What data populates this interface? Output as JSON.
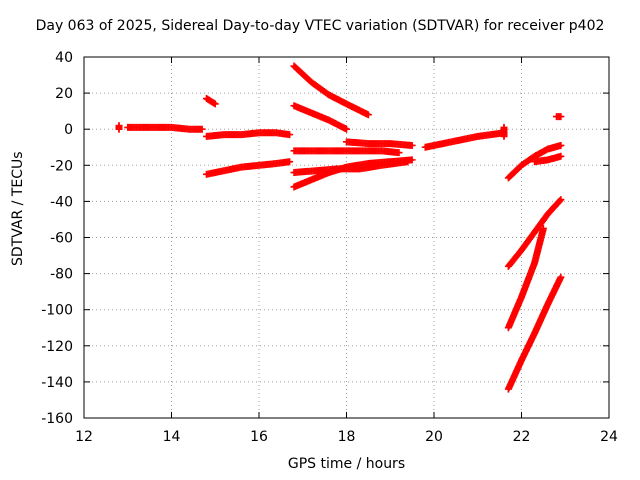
{
  "chart_data": {
    "type": "scatter",
    "title": "Day 063 of 2025, Sidereal Day-to-day VTEC variation (SDTVAR) for receiver p402",
    "xlabel": "GPS time / hours",
    "ylabel": "SDTVAR / TECUs",
    "xlim": [
      12,
      24
    ],
    "ylim": [
      -160,
      40
    ],
    "xticks": [
      12,
      14,
      16,
      18,
      20,
      22,
      24
    ],
    "yticks": [
      40,
      20,
      0,
      -20,
      -40,
      -60,
      -80,
      -100,
      -120,
      -140,
      -160
    ],
    "grid": true,
    "legend": "none",
    "marker": "+",
    "color": "#ff0000",
    "series": [
      {
        "points": [
          [
            12.8,
            2
          ],
          [
            12.8,
            0
          ]
        ]
      },
      {
        "points": [
          [
            13.0,
            1
          ],
          [
            13.5,
            1
          ],
          [
            14.0,
            1
          ],
          [
            14.4,
            0
          ],
          [
            14.7,
            0
          ]
        ]
      },
      {
        "points": [
          [
            14.8,
            17
          ],
          [
            15.0,
            14
          ]
        ]
      },
      {
        "points": [
          [
            14.8,
            -4
          ],
          [
            15.2,
            -3
          ],
          [
            15.6,
            -3
          ],
          [
            16.0,
            -2
          ],
          [
            16.4,
            -2
          ],
          [
            16.7,
            -3
          ]
        ]
      },
      {
        "points": [
          [
            14.8,
            -25
          ],
          [
            15.2,
            -23
          ],
          [
            15.6,
            -21
          ],
          [
            16.0,
            -20
          ],
          [
            16.4,
            -19
          ],
          [
            16.7,
            -18
          ]
        ]
      },
      {
        "points": [
          [
            16.8,
            35
          ],
          [
            17.2,
            26
          ],
          [
            17.6,
            19
          ],
          [
            18.0,
            14
          ],
          [
            18.5,
            8
          ]
        ]
      },
      {
        "points": [
          [
            16.8,
            13
          ],
          [
            17.2,
            9
          ],
          [
            17.6,
            5
          ],
          [
            18.0,
            0
          ]
        ]
      },
      {
        "points": [
          [
            16.8,
            -12
          ],
          [
            17.3,
            -12
          ],
          [
            17.8,
            -12
          ],
          [
            18.3,
            -12
          ],
          [
            18.8,
            -12
          ],
          [
            19.2,
            -13
          ]
        ]
      },
      {
        "points": [
          [
            16.8,
            -24
          ],
          [
            17.3,
            -23
          ],
          [
            17.8,
            -22
          ],
          [
            18.3,
            -22
          ],
          [
            18.8,
            -20
          ],
          [
            19.4,
            -18
          ]
        ]
      },
      {
        "points": [
          [
            16.8,
            -32
          ],
          [
            17.2,
            -28
          ],
          [
            17.6,
            -24
          ],
          [
            18.0,
            -21
          ],
          [
            18.5,
            -19
          ],
          [
            19.0,
            -18
          ],
          [
            19.5,
            -17
          ]
        ]
      },
      {
        "points": [
          [
            18.0,
            -7
          ],
          [
            18.5,
            -8
          ],
          [
            19.0,
            -8
          ],
          [
            19.5,
            -9
          ]
        ]
      },
      {
        "points": [
          [
            19.8,
            -10
          ],
          [
            20.2,
            -8
          ],
          [
            20.6,
            -6
          ],
          [
            21.0,
            -4
          ],
          [
            21.3,
            -3
          ],
          [
            21.6,
            -2
          ]
        ]
      },
      {
        "points": [
          [
            21.6,
            1
          ],
          [
            21.6,
            -4
          ]
        ]
      },
      {
        "points": [
          [
            21.7,
            -27
          ],
          [
            22.0,
            -20
          ],
          [
            22.3,
            -15
          ],
          [
            22.6,
            -11
          ],
          [
            22.9,
            -9
          ]
        ]
      },
      {
        "points": [
          [
            22.3,
            -18
          ],
          [
            22.6,
            -17
          ],
          [
            22.9,
            -15
          ]
        ]
      },
      {
        "points": [
          [
            22.8,
            7
          ],
          [
            22.9,
            7
          ]
        ]
      },
      {
        "points": [
          [
            21.7,
            -76
          ],
          [
            22.0,
            -67
          ],
          [
            22.3,
            -57
          ],
          [
            22.6,
            -47
          ],
          [
            22.9,
            -39
          ]
        ]
      },
      {
        "points": [
          [
            21.7,
            -110
          ],
          [
            22.0,
            -93
          ],
          [
            22.3,
            -74
          ],
          [
            22.5,
            -55
          ]
        ]
      },
      {
        "points": [
          [
            21.7,
            -144
          ],
          [
            22.0,
            -128
          ],
          [
            22.3,
            -113
          ],
          [
            22.6,
            -97
          ],
          [
            22.9,
            -82
          ]
        ]
      }
    ]
  }
}
